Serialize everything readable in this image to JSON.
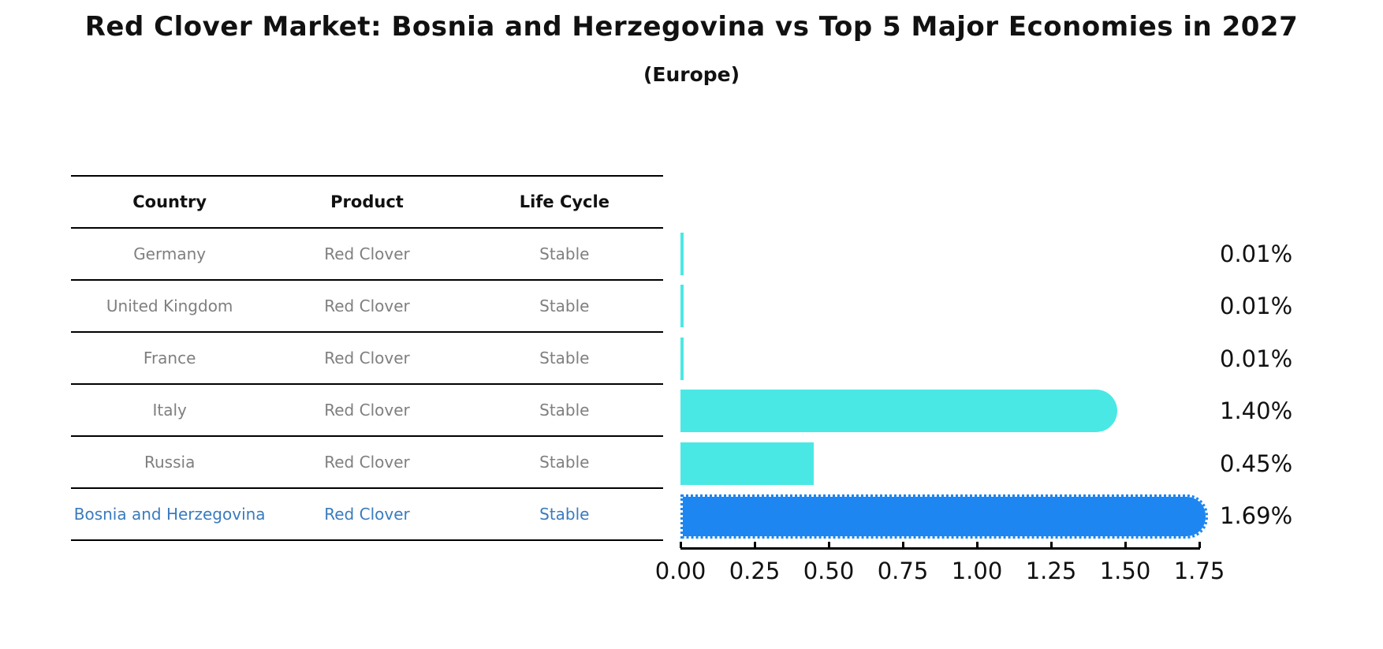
{
  "title": "Red Clover Market: Bosnia and Herzegovina vs Top 5 Major Economies in 2027",
  "subtitle": "(Europe)",
  "table": {
    "headers": [
      "Country",
      "Product",
      "Life Cycle"
    ],
    "rows": [
      {
        "country": "Germany",
        "product": "Red Clover",
        "life_cycle": "Stable"
      },
      {
        "country": "United Kingdom",
        "product": "Red Clover",
        "life_cycle": "Stable"
      },
      {
        "country": "France",
        "product": "Red Clover",
        "life_cycle": "Stable"
      },
      {
        "country": "Italy",
        "product": "Red Clover",
        "life_cycle": "Stable"
      },
      {
        "country": "Russia",
        "product": "Red Clover",
        "life_cycle": "Stable"
      },
      {
        "country": "Bosnia and Herzegovina",
        "product": "Red Clover",
        "life_cycle": "Stable"
      }
    ],
    "highlight_row": 5
  },
  "chart_data": {
    "type": "bar",
    "orientation": "horizontal",
    "categories": [
      "Germany",
      "United Kingdom",
      "France",
      "Italy",
      "Russia",
      "Bosnia and Herzegovina"
    ],
    "values": [
      0.01,
      0.01,
      0.01,
      1.4,
      0.45,
      1.69
    ],
    "value_labels": [
      "0.01%",
      "0.01%",
      "0.01%",
      "1.40%",
      "0.45%",
      "1.69%"
    ],
    "x_ticks": [
      "0.00",
      "0.25",
      "0.50",
      "0.75",
      "1.00",
      "1.25",
      "1.50",
      "1.75"
    ],
    "xlim": [
      0,
      1.75
    ],
    "grid": false,
    "legend": "none",
    "bar_color": "#4ae8e4",
    "highlight_color": "#1e86f0",
    "highlight_index": 5,
    "highlight_text_color": "#3a7bbe"
  }
}
